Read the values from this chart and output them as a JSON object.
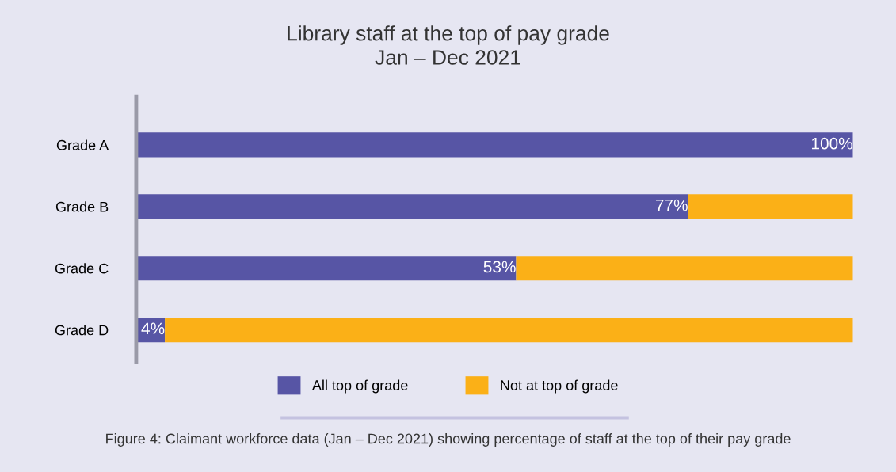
{
  "chart_data": {
    "type": "bar",
    "orientation": "horizontal",
    "stacked": true,
    "title": "Library staff at the top of pay grade\nJan – Dec 2021",
    "categories": [
      "Grade A",
      "Grade B",
      "Grade C",
      "Grade D"
    ],
    "series": [
      {
        "name": "All top of grade",
        "color": "#5755a5",
        "values": [
          100,
          77,
          53,
          4
        ],
        "value_labels": [
          "100%",
          "77%",
          "53%",
          "4%"
        ]
      },
      {
        "name": "Not at top of grade",
        "color": "#fbb017",
        "values": [
          0,
          23,
          47,
          96
        ]
      }
    ],
    "xlim": [
      0,
      100
    ],
    "tick_labels": "y",
    "grid": false,
    "legend": "bottom",
    "annotations": [
      "Figure 4: Claimant workforce data (Jan – Dec 2021) showing percentage of staff at the top of their pay grade"
    ]
  }
}
